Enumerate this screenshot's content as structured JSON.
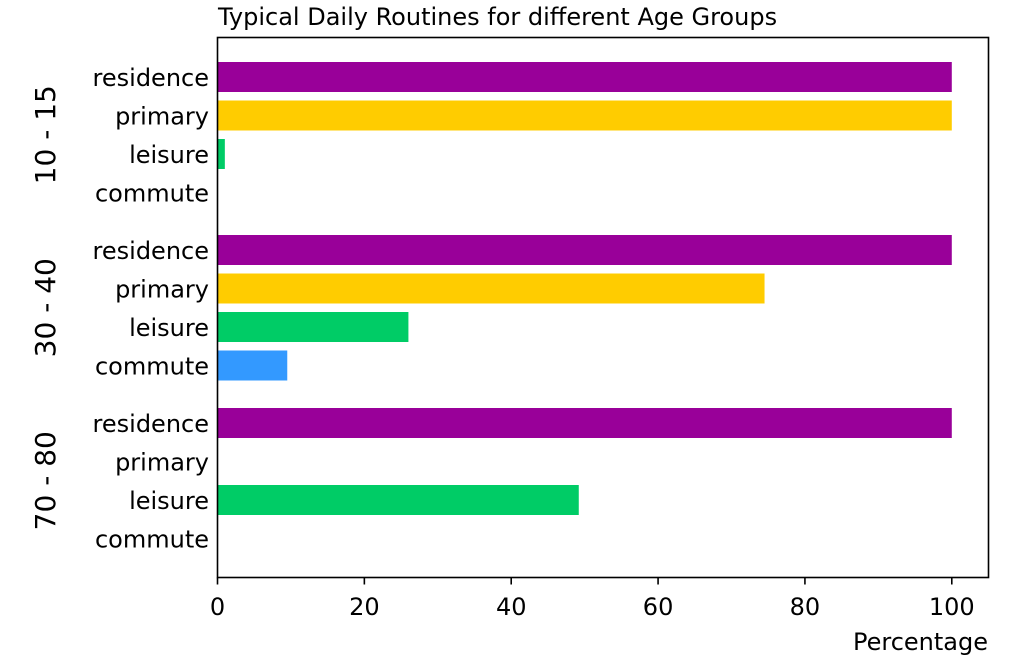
{
  "chart_data": {
    "type": "bar",
    "orientation": "horizontal",
    "title": "Typical Daily Routines for different Age Groups",
    "xlabel": "Percentage",
    "ylabel": "",
    "xlim": [
      0,
      105
    ],
    "x_ticks": [
      "0",
      "20",
      "40",
      "60",
      "80",
      "100"
    ],
    "grid": false,
    "colors": {
      "residence": "#990099",
      "primary": "#ffcc00",
      "leisure": "#00cc66",
      "commute": "#3399ff"
    },
    "categories": [
      "residence",
      "primary",
      "leisure",
      "commute"
    ],
    "groups": [
      {
        "name": "10 - 15",
        "values": [
          100,
          100,
          1,
          0
        ]
      },
      {
        "name": "30 - 40",
        "values": [
          100,
          74.5,
          26,
          9.5
        ]
      },
      {
        "name": "70 - 80",
        "values": [
          100,
          0,
          49.2,
          0
        ]
      }
    ]
  }
}
